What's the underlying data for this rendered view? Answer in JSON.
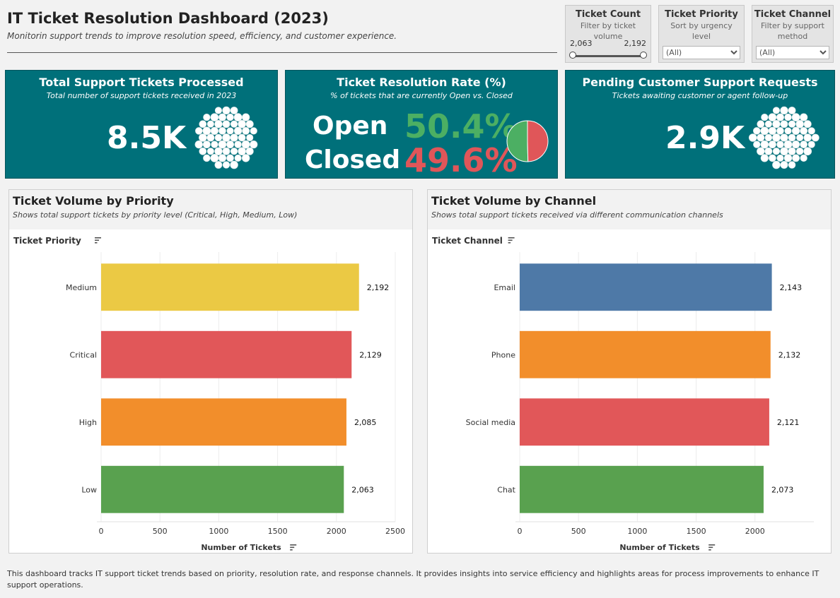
{
  "header": {
    "title": "IT Ticket Resolution Dashboard (2023)",
    "subtitle": "Monitorin support trends to improve resolution speed, efficiency, and customer experience."
  },
  "filters": {
    "ticket_count": {
      "title": "Ticket Count",
      "subtitle": "Filter by ticket volume",
      "min": "2,063",
      "max": "2,192"
    },
    "ticket_priority": {
      "title": "Ticket Priority",
      "subtitle": "Sort by urgency level",
      "value": "(All)"
    },
    "ticket_channel": {
      "title": "Ticket Channel",
      "subtitle": "Filter by support method",
      "value": "(All)"
    }
  },
  "kpis": {
    "total": {
      "title": "Total Support Tickets Processed",
      "subtitle": "Total number of support tickets received in 2023",
      "value": "8.5K"
    },
    "resolution": {
      "title": "Ticket Resolution Rate (%)",
      "subtitle": "% of tickets that are currently Open vs. Closed",
      "open_label": "Open",
      "open_value": "50.4%",
      "closed_label": "Closed",
      "closed_value": "49.6%",
      "open_fraction": 0.504
    },
    "pending": {
      "title": "Pending Customer Support Requests",
      "subtitle": "Tickets awaiting customer or agent follow-up",
      "value": "2.9K"
    }
  },
  "colors": {
    "teal": "#00707a",
    "green": "#4caf63",
    "red": "#e05659",
    "yellow": "#ebc944",
    "orange": "#f28e2b",
    "blue": "#4e79a7",
    "bar_green": "#59a14f"
  },
  "chart_data": [
    {
      "type": "bar",
      "title": "Ticket Volume by Priority",
      "subtitle": "Shows total support tickets by priority level (Critical, High, Medium, Low)",
      "ylabel": "Ticket Priority",
      "xlabel": "Number of Tickets",
      "categories": [
        "Medium",
        "Critical",
        "High",
        "Low"
      ],
      "values": [
        2192,
        2129,
        2085,
        2063
      ],
      "value_labels": [
        "2,192",
        "2,129",
        "2,085",
        "2,063"
      ],
      "colors": [
        "#ebc944",
        "#e15759",
        "#f28e2b",
        "#59a14f"
      ],
      "xlim": [
        0,
        2500
      ],
      "ticks": [
        0,
        500,
        1000,
        1500,
        2000,
        2500
      ],
      "tick_labels": [
        "0",
        "500",
        "1000",
        "1500",
        "2000",
        "2500"
      ]
    },
    {
      "type": "bar",
      "title": "Ticket Volume by Channel",
      "subtitle": "Shows total support tickets received via different communication channels",
      "ylabel": "Ticket Channel",
      "xlabel": "Number of Tickets",
      "categories": [
        "Email",
        "Phone",
        "Social media",
        "Chat"
      ],
      "values": [
        2143,
        2132,
        2121,
        2073
      ],
      "value_labels": [
        "2,143",
        "2,132",
        "2,121",
        "2,073"
      ],
      "colors": [
        "#4e79a7",
        "#f28e2b",
        "#e15759",
        "#59a14f"
      ],
      "xlim": [
        0,
        2500
      ],
      "ticks": [
        0,
        500,
        1000,
        1500,
        2000
      ],
      "tick_labels": [
        "0",
        "500",
        "1000",
        "1500",
        "2000"
      ]
    }
  ],
  "footer": "This dashboard tracks IT support ticket trends based on priority, resolution rate, and response channels. It provides insights into service efficiency and highlights areas for process improvements to enhance IT support operations."
}
